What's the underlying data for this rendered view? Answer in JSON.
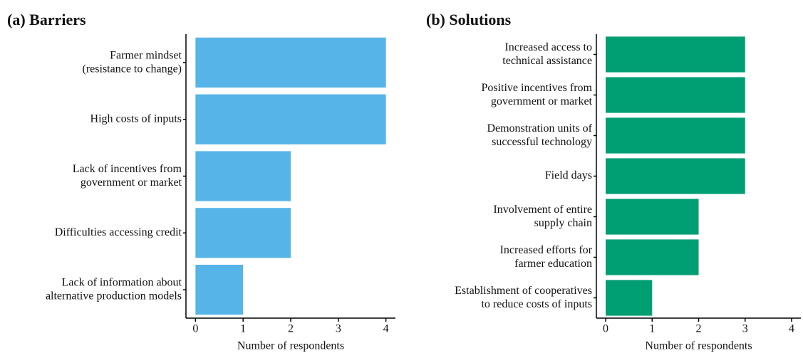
{
  "chart_data": [
    {
      "type": "bar",
      "orientation": "horizontal",
      "title": "(a) Barriers",
      "x_label": "Number of respondents",
      "categories": [
        "Farmer mindset\n(resistance to change)",
        "High costs of inputs",
        "Lack of incentives from\ngovernment or market",
        "Difficulties accessing credit",
        "Lack of information about\nalternative production models"
      ],
      "values": [
        4,
        4,
        2,
        2,
        1
      ],
      "color": "#56b4e9",
      "xlim": [
        -0.2,
        4.2
      ],
      "xticks": [
        0,
        1,
        2,
        3,
        4
      ]
    },
    {
      "type": "bar",
      "orientation": "horizontal",
      "title": "(b) Solutions",
      "x_label": "Number of respondents",
      "categories": [
        "Increased access to\ntechnical assistance",
        "Positive incentives from\ngovernment or market",
        "Demonstration units of\nsuccessful technology",
        "Field days",
        "Involvement of entire\nsupply chain",
        "Increased efforts for\nfarmer education",
        "Establishment of cooperatives\nto reduce costs of inputs"
      ],
      "values": [
        3,
        3,
        3,
        3,
        2,
        2,
        1
      ],
      "color": "#009e73",
      "xlim": [
        -0.2,
        4.2
      ],
      "xticks": [
        0,
        1,
        2,
        3,
        4
      ]
    }
  ]
}
